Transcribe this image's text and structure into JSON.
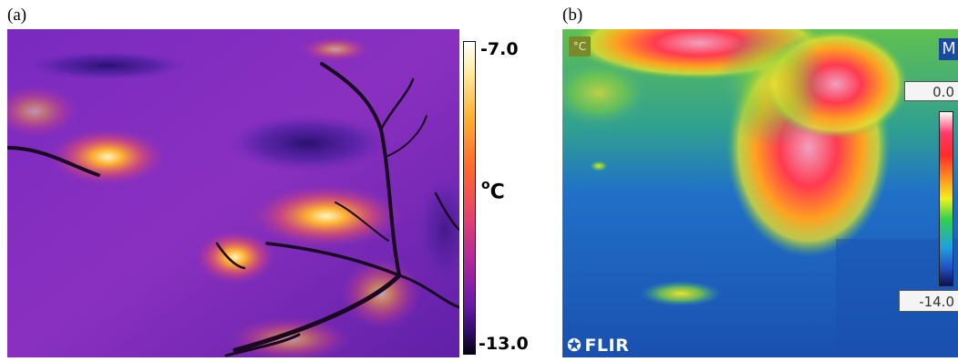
{
  "panel_a": {
    "label": "(a)",
    "scale": {
      "max_label": "-7.0",
      "min_label": "-13.0",
      "unit": "C",
      "unit_degree": "o"
    }
  },
  "panel_b": {
    "label": "(b)",
    "camera": {
      "unit_badge": "°C",
      "mode_badge": "M",
      "max_label": "0.0",
      "min_label": "-14.0",
      "brand": "FLIR",
      "brand_icon": "flir-logo-icon"
    }
  }
}
